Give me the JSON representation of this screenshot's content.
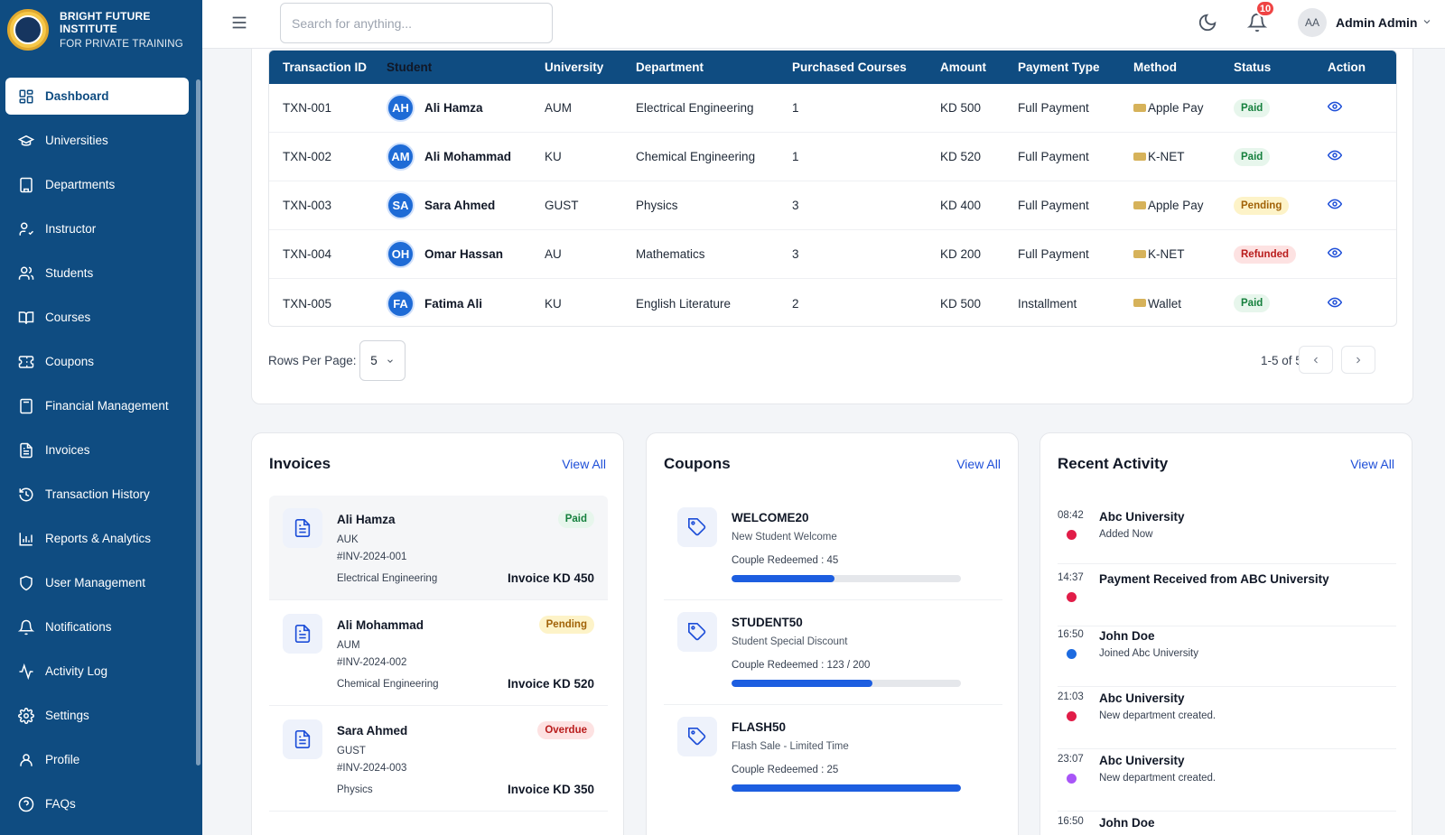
{
  "brand": {
    "name_line1": "BRIGHT FUTURE",
    "name_line2": "INSTITUTE",
    "tagline": "FOR PRIVATE TRAINING"
  },
  "sidebar": {
    "items": [
      {
        "label": "Dashboard",
        "icon": "dashboard-icon",
        "active": true
      },
      {
        "label": "Universities",
        "icon": "graduation-cap-icon"
      },
      {
        "label": "Departments",
        "icon": "building-icon"
      },
      {
        "label": "Instructor",
        "icon": "user-check-icon"
      },
      {
        "label": "Students",
        "icon": "users-icon"
      },
      {
        "label": "Courses",
        "icon": "book-icon"
      },
      {
        "label": "Coupons",
        "icon": "ticket-icon"
      },
      {
        "label": "Financial Management",
        "icon": "calculator-icon"
      },
      {
        "label": "Invoices",
        "icon": "file-text-icon"
      },
      {
        "label": "Transaction History",
        "icon": "history-icon"
      },
      {
        "label": "Reports & Analytics",
        "icon": "bar-chart-icon"
      },
      {
        "label": "User Management",
        "icon": "shield-icon"
      },
      {
        "label": "Notifications",
        "icon": "bell-icon"
      },
      {
        "label": "Activity Log",
        "icon": "activity-icon"
      },
      {
        "label": "Settings",
        "icon": "gear-icon"
      },
      {
        "label": "Profile",
        "icon": "user-icon"
      },
      {
        "label": "FAQs",
        "icon": "help-circle-icon"
      }
    ]
  },
  "topbar": {
    "search_placeholder": "Search for anything...",
    "notification_count": "10",
    "user_initials": "AA",
    "user_name": "Admin Admin"
  },
  "transactions": {
    "columns": [
      "Transaction ID",
      "Student",
      "University",
      "Department",
      "Purchased Courses",
      "Amount",
      "Payment Type",
      "Method",
      "Status",
      "Action"
    ],
    "rows": [
      {
        "id": "TXN-001",
        "initials": "AH",
        "student": "Ali Hamza",
        "university": "AUM",
        "department": "Electrical Engineering",
        "courses": "1",
        "amount": "KD 500",
        "payment_type": "Full Payment",
        "method": "Apple Pay",
        "status": "Paid",
        "status_kind": "paid"
      },
      {
        "id": "TXN-002",
        "initials": "AM",
        "student": "Ali Mohammad",
        "university": "KU",
        "department": "Chemical Engineering",
        "courses": "1",
        "amount": "KD 520",
        "payment_type": "Full Payment",
        "method": "K-NET",
        "status": "Paid",
        "status_kind": "paid"
      },
      {
        "id": "TXN-003",
        "initials": "SA",
        "student": "Sara Ahmed",
        "university": "GUST",
        "department": "Physics",
        "courses": "3",
        "amount": "KD 400",
        "payment_type": "Full Payment",
        "method": "Apple Pay",
        "status": "Pending",
        "status_kind": "pending"
      },
      {
        "id": "TXN-004",
        "initials": "OH",
        "student": "Omar Hassan",
        "university": "AU",
        "department": "Mathematics",
        "courses": "3",
        "amount": "KD 200",
        "payment_type": "Full Payment",
        "method": "K-NET",
        "status": "Refunded",
        "status_kind": "refunded"
      },
      {
        "id": "TXN-005",
        "initials": "FA",
        "student": "Fatima Ali",
        "university": "KU",
        "department": "English Literature",
        "courses": "2",
        "amount": "KD 500",
        "payment_type": "Installment",
        "method": "Wallet",
        "status": "Paid",
        "status_kind": "paid"
      }
    ],
    "rows_per_page_label": "Rows Per Page:",
    "rows_per_page": "5",
    "range": "1-5 of 5"
  },
  "invoices": {
    "title": "Invoices",
    "view_all": "View All",
    "items": [
      {
        "name": "Ali Hamza",
        "university": "AUK",
        "number": "#INV-2024-001",
        "department": "Electrical Engineering",
        "amount": "Invoice KD 450",
        "status": "Paid",
        "status_kind": "paid"
      },
      {
        "name": "Ali Mohammad",
        "university": "AUM",
        "number": "#INV-2024-002",
        "department": "Chemical Engineering",
        "amount": "Invoice KD 520",
        "status": "Pending",
        "status_kind": "pending"
      },
      {
        "name": "Sara Ahmed",
        "university": "GUST",
        "number": "#INV-2024-003",
        "department": "Physics",
        "amount": "Invoice KD 350",
        "status": "Overdue",
        "status_kind": "overdue"
      }
    ]
  },
  "coupons": {
    "title": "Coupons",
    "view_all": "View All",
    "items": [
      {
        "code": "WELCOME20",
        "description": "New Student Welcome",
        "redeemed": "Couple Redeemed : 45",
        "progress": 0.45
      },
      {
        "code": "STUDENT50",
        "description": "Student Special Discount",
        "redeemed": "Couple Redeemed : 123 / 200",
        "progress": 0.615
      },
      {
        "code": "FLASH50",
        "description": "Flash Sale - Limited Time",
        "redeemed": "Couple Redeemed : 25",
        "progress": 1.0
      }
    ]
  },
  "activity": {
    "title": "Recent Activity",
    "view_all": "View All",
    "items": [
      {
        "time": "08:42",
        "title": "Abc University",
        "subtitle": "Added Now",
        "dot_color": "#e11d48"
      },
      {
        "time": "14:37",
        "title": "Payment Received from ABC University",
        "subtitle": "",
        "dot_color": "#e11d48"
      },
      {
        "time": "16:50",
        "title": "John Doe",
        "subtitle": "Joined Abc University",
        "dot_color": "#1d6be0"
      },
      {
        "time": "21:03",
        "title": "Abc University",
        "subtitle": "New department created.",
        "dot_color": "#e11d48"
      },
      {
        "time": "23:07",
        "title": "Abc University",
        "subtitle": "New department created.",
        "dot_color": "#a855f7"
      },
      {
        "time": "16:50",
        "title": "John Doe",
        "subtitle": "",
        "dot_color": "#1d6be0"
      }
    ]
  },
  "colors": {
    "primary": "#0f4c81",
    "accent": "#1d4ed8",
    "badge": "#ef4444"
  }
}
